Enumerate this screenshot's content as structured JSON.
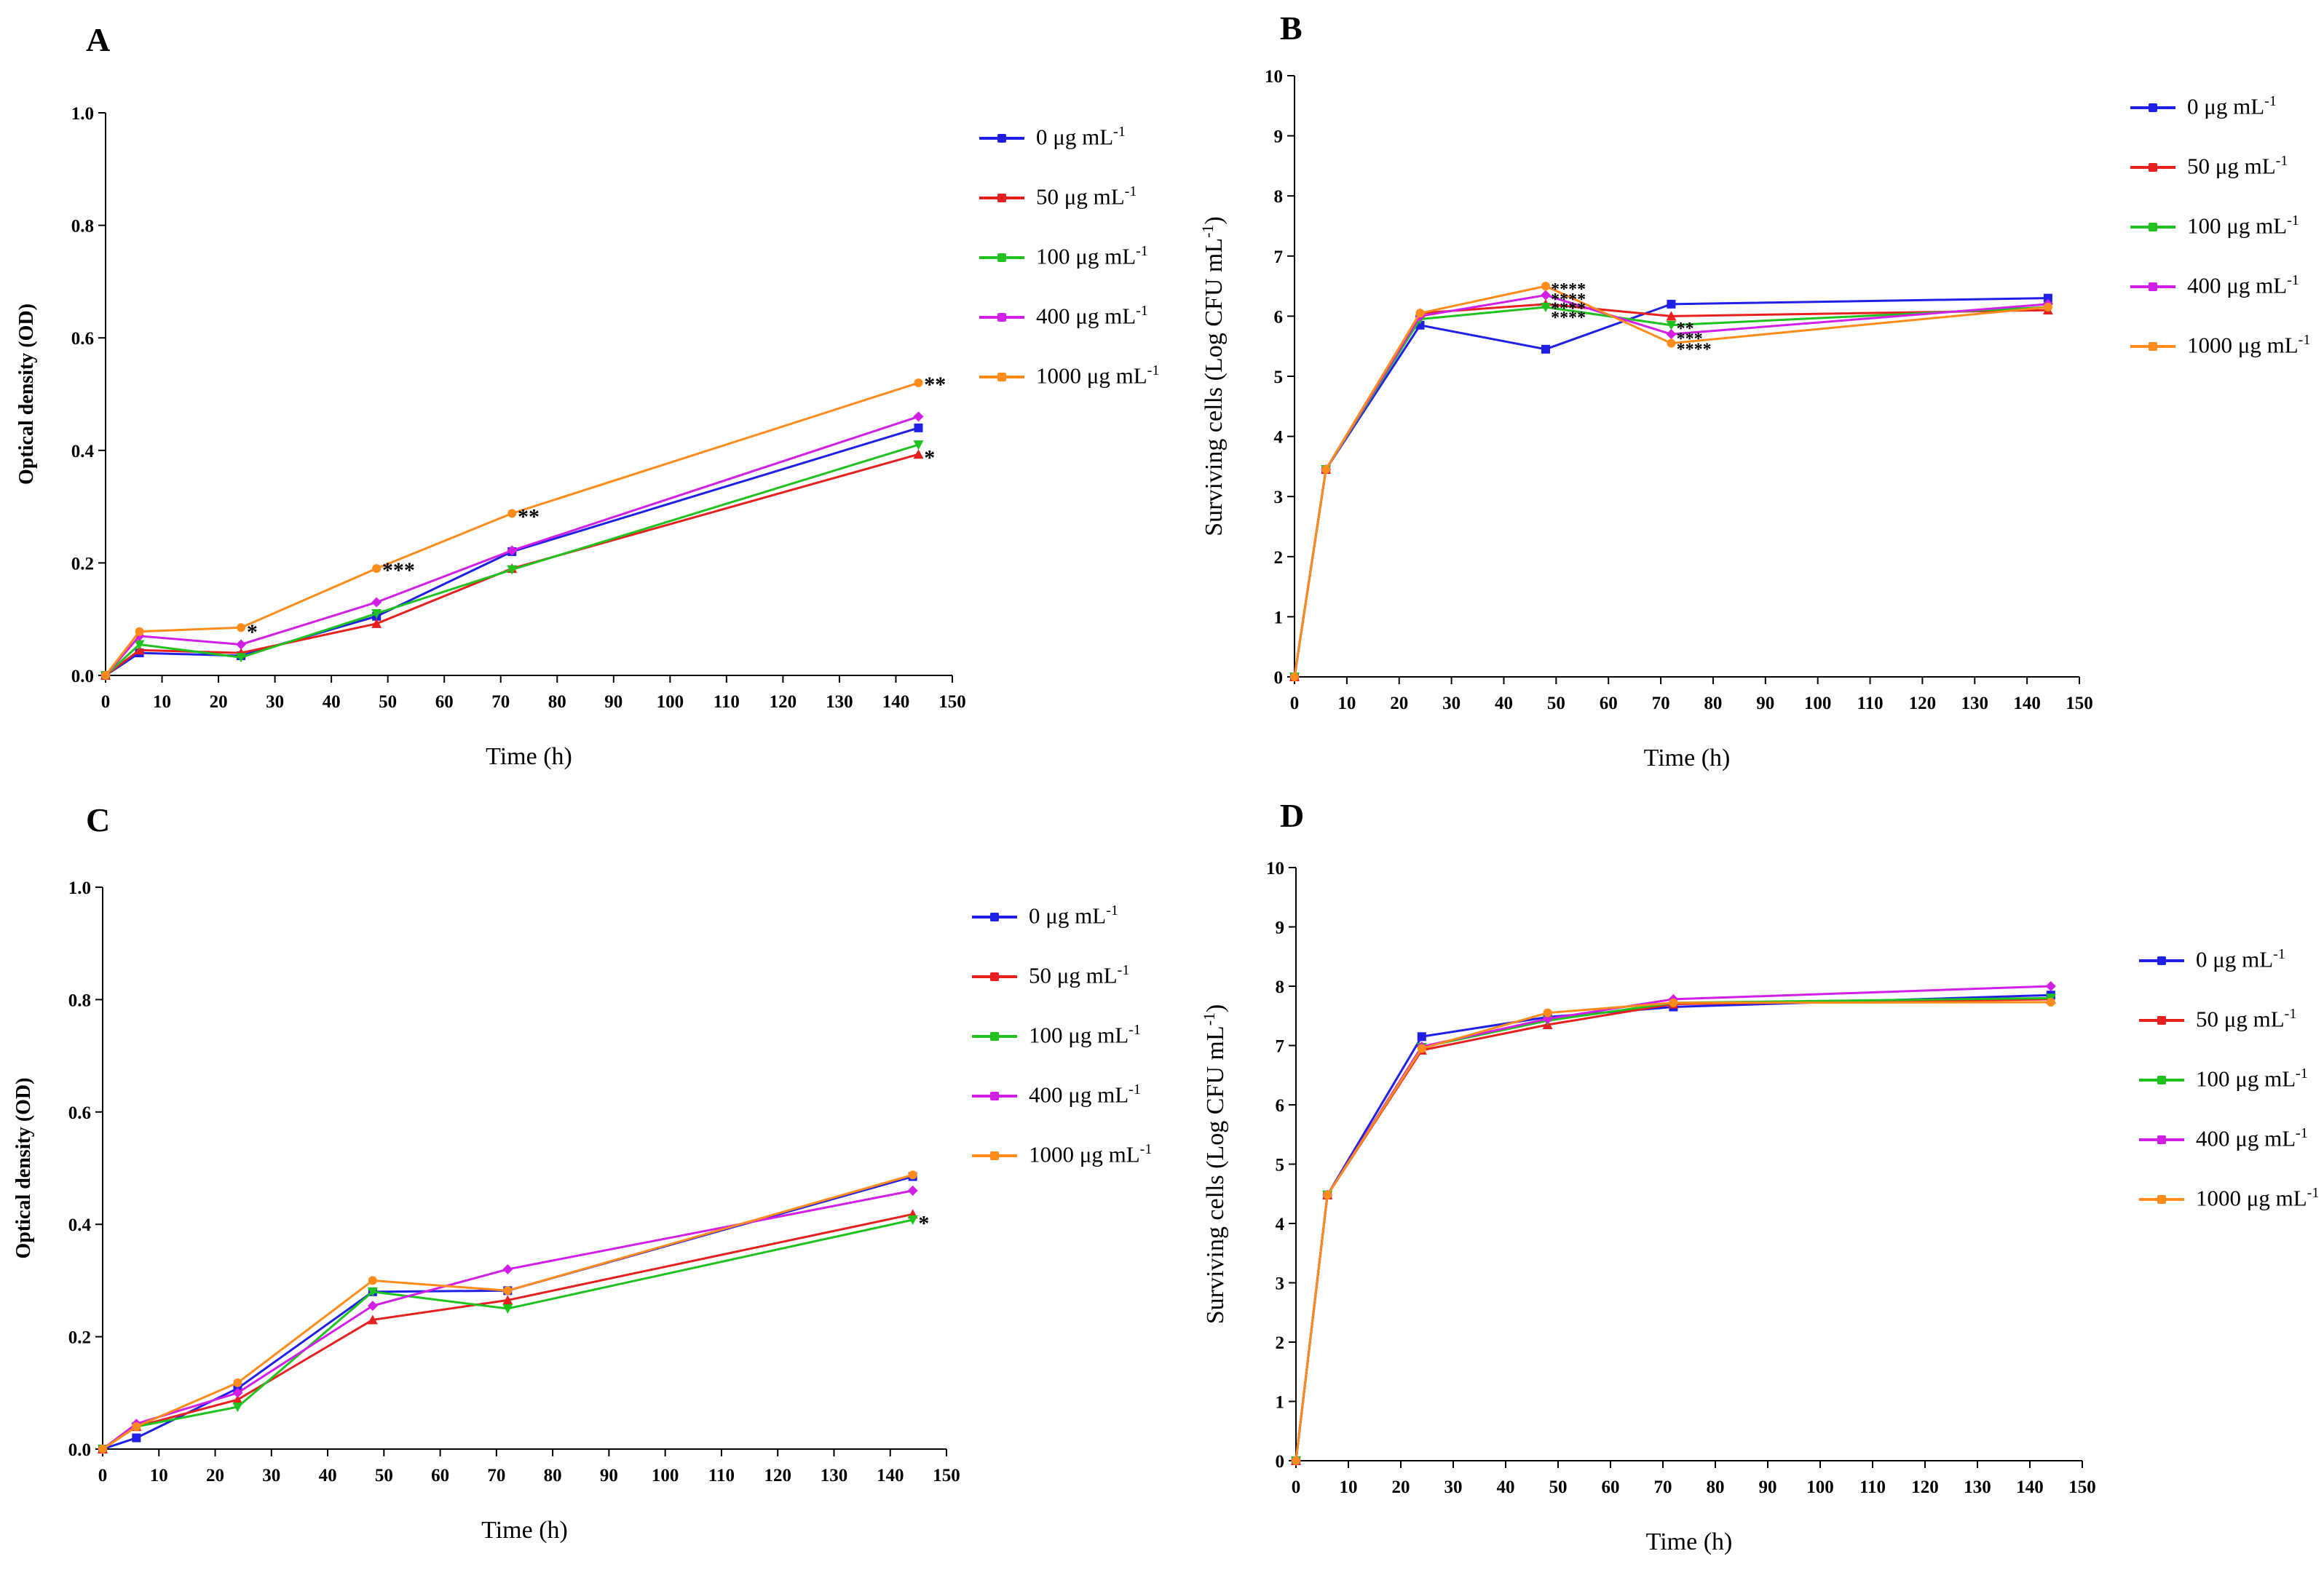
{
  "figure": {
    "series_names": [
      "0 μg mL",
      "50 μg mL",
      "100 μg mL",
      "400 μg mL",
      "1000 μg mL"
    ],
    "unit_superscript": "-1",
    "colors": [
      "#1f1fe6",
      "#e61f1f",
      "#1fc21f",
      "#d11fe6",
      "#ff8c1a"
    ],
    "time_points": [
      0,
      6,
      24,
      48,
      72,
      144
    ]
  },
  "chart_data": [
    {
      "panel": "A",
      "type": "line",
      "xlabel": "Time (h)",
      "ylabel": "Optical density (OD)",
      "xlim": [
        0,
        150
      ],
      "ylim": [
        0,
        1.0
      ],
      "xticks": [
        "0",
        "10",
        "20",
        "30",
        "40",
        "50",
        "60",
        "70",
        "80",
        "90",
        "100",
        "110",
        "120",
        "130",
        "140",
        "150"
      ],
      "yticks": [
        "0.0",
        "0.2",
        "0.4",
        "0.6",
        "0.8",
        "1.0"
      ],
      "x": [
        0,
        6,
        24,
        48,
        72,
        144
      ],
      "series": [
        {
          "name": "0 μg mL",
          "values": [
            0.0,
            0.04,
            0.035,
            0.105,
            0.22,
            0.44
          ]
        },
        {
          "name": "50 μg mL",
          "values": [
            0.0,
            0.045,
            0.04,
            0.092,
            0.19,
            0.393
          ]
        },
        {
          "name": "100 μg mL",
          "values": [
            0.0,
            0.055,
            0.032,
            0.11,
            0.188,
            0.41
          ]
        },
        {
          "name": "400 μg mL",
          "values": [
            0.0,
            0.07,
            0.055,
            0.13,
            0.222,
            0.46
          ]
        },
        {
          "name": "1000 μg mL",
          "values": [
            0.0,
            0.078,
            0.085,
            0.19,
            0.288,
            0.52
          ]
        }
      ],
      "annotations": [
        {
          "text": "*",
          "x": 25,
          "y": 0.08
        },
        {
          "text": "***",
          "x": 49,
          "y": 0.19
        },
        {
          "text": "**",
          "x": 73,
          "y": 0.285
        },
        {
          "text": "**",
          "x": 145,
          "y": 0.52
        },
        {
          "text": "*",
          "x": 145,
          "y": 0.39
        }
      ]
    },
    {
      "panel": "B",
      "type": "line",
      "xlabel": "Time (h)",
      "ylabel": "Surviving cells (Log CFU mL",
      "xlim": [
        0,
        150
      ],
      "ylim": [
        0,
        10
      ],
      "xticks": [
        "0",
        "10",
        "20",
        "30",
        "40",
        "50",
        "60",
        "70",
        "80",
        "90",
        "100",
        "110",
        "120",
        "130",
        "140",
        "150"
      ],
      "yticks": [
        "0",
        "1",
        "2",
        "3",
        "4",
        "5",
        "6",
        "7",
        "8",
        "9",
        "10"
      ],
      "x": [
        0,
        6,
        24,
        48,
        72,
        144
      ],
      "series": [
        {
          "name": "0 μg mL",
          "values": [
            0.0,
            3.45,
            5.85,
            5.45,
            6.2,
            6.3
          ]
        },
        {
          "name": "50 μg mL",
          "values": [
            0.0,
            3.45,
            6.05,
            6.2,
            6.0,
            6.1
          ]
        },
        {
          "name": "100 μg mL",
          "values": [
            0.0,
            3.45,
            5.95,
            6.15,
            5.85,
            6.15
          ]
        },
        {
          "name": "400 μg mL",
          "values": [
            0.0,
            3.45,
            6.0,
            6.35,
            5.7,
            6.2
          ]
        },
        {
          "name": "1000 μg mL",
          "values": [
            0.0,
            3.45,
            6.05,
            6.5,
            5.55,
            6.15
          ]
        }
      ],
      "annotations": [
        {
          "text": "****",
          "x": 49,
          "y": 6.5
        },
        {
          "text": "****",
          "x": 49,
          "y": 6.33
        },
        {
          "text": "****",
          "x": 49,
          "y": 6.18
        },
        {
          "text": "****",
          "x": 49,
          "y": 6.03
        },
        {
          "text": "**",
          "x": 73,
          "y": 5.85
        },
        {
          "text": "***",
          "x": 73,
          "y": 5.68
        },
        {
          "text": "****",
          "x": 73,
          "y": 5.5
        }
      ]
    },
    {
      "panel": "C",
      "type": "line",
      "xlabel": "Time (h)",
      "ylabel": "Optical density (OD)",
      "xlim": [
        0,
        150
      ],
      "ylim": [
        0,
        1.0
      ],
      "xticks": [
        "0",
        "10",
        "20",
        "30",
        "40",
        "50",
        "60",
        "70",
        "80",
        "90",
        "100",
        "110",
        "120",
        "130",
        "140",
        "150"
      ],
      "yticks": [
        "0.0",
        "0.2",
        "0.4",
        "0.6",
        "0.8",
        "1.0"
      ],
      "x": [
        0,
        6,
        24,
        48,
        72,
        144
      ],
      "series": [
        {
          "name": "0 μg mL",
          "values": [
            0.0,
            0.02,
            0.108,
            0.28,
            0.282,
            0.485
          ]
        },
        {
          "name": "50 μg mL",
          "values": [
            0.0,
            0.04,
            0.088,
            0.23,
            0.265,
            0.418
          ]
        },
        {
          "name": "100 μg mL",
          "values": [
            0.0,
            0.04,
            0.075,
            0.28,
            0.25,
            0.408
          ]
        },
        {
          "name": "400 μg mL",
          "values": [
            0.0,
            0.045,
            0.1,
            0.255,
            0.32,
            0.46
          ]
        },
        {
          "name": "1000 μg mL",
          "values": [
            0.0,
            0.04,
            0.118,
            0.3,
            0.282,
            0.488
          ]
        }
      ],
      "annotations": [
        {
          "text": "*",
          "x": 145,
          "y": 0.405
        }
      ]
    },
    {
      "panel": "D",
      "type": "line",
      "xlabel": "Time (h)",
      "ylabel": "Surviving cells (Log CFU mL",
      "xlim": [
        0,
        150
      ],
      "ylim": [
        0,
        10
      ],
      "xticks": [
        "0",
        "10",
        "20",
        "30",
        "40",
        "50",
        "60",
        "70",
        "80",
        "90",
        "100",
        "110",
        "120",
        "130",
        "140",
        "150"
      ],
      "yticks": [
        "0",
        "1",
        "2",
        "3",
        "4",
        "5",
        "6",
        "7",
        "8",
        "9",
        "10"
      ],
      "x": [
        0,
        6,
        24,
        48,
        72,
        144
      ],
      "series": [
        {
          "name": "0 μg mL",
          "values": [
            0.0,
            4.48,
            7.15,
            7.48,
            7.65,
            7.85
          ]
        },
        {
          "name": "50 μg mL",
          "values": [
            0.0,
            4.48,
            6.92,
            7.35,
            7.7,
            7.78
          ]
        },
        {
          "name": "100 μg mL",
          "values": [
            0.0,
            4.48,
            6.97,
            7.42,
            7.72,
            7.8
          ]
        },
        {
          "name": "400 μg mL",
          "values": [
            0.0,
            4.48,
            6.98,
            7.45,
            7.78,
            8.0
          ]
        },
        {
          "name": "1000 μg mL",
          "values": [
            0.0,
            4.48,
            6.95,
            7.55,
            7.72,
            7.73
          ]
        }
      ],
      "annotations": []
    }
  ]
}
